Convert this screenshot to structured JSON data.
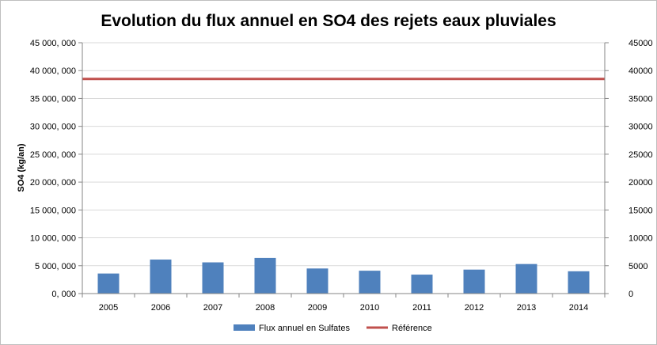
{
  "chart_data": {
    "type": "bar",
    "title": "Evolution du flux annuel en SO4 des rejets  eaux pluviales",
    "ylabel": "SO4 (kg/an)",
    "xlabel": "",
    "categories": [
      "2005",
      "2006",
      "2007",
      "2008",
      "2009",
      "2010",
      "2011",
      "2012",
      "2013",
      "2014"
    ],
    "series": [
      {
        "name": "Flux annuel en Sulfates",
        "type": "bar",
        "color": "#4f81bd",
        "values": [
          3600000,
          6100000,
          5600000,
          6400000,
          4500000,
          4100000,
          3400000,
          4300000,
          5300000,
          4000000
        ]
      },
      {
        "name": "Référence",
        "type": "line",
        "color": "#c0504d",
        "values": [
          38500000,
          38500000,
          38500000,
          38500000,
          38500000,
          38500000,
          38500000,
          38500000,
          38500000,
          38500000
        ]
      }
    ],
    "ylim": [
      0,
      45000000
    ],
    "y_ticks": [
      "0, 000",
      "5 000, 000",
      "10 000, 000",
      "15 000, 000",
      "20 000, 000",
      "25 000, 000",
      "30 000, 000",
      "35 000, 000",
      "40 000, 000",
      "45 000, 000"
    ],
    "y2lim": [
      0,
      45000
    ],
    "y2_ticks": [
      "0",
      "5000",
      "10000",
      "15000",
      "20000",
      "25000",
      "30000",
      "35000",
      "40000",
      "45000"
    ],
    "grid": true,
    "legend_position": "bottom"
  }
}
